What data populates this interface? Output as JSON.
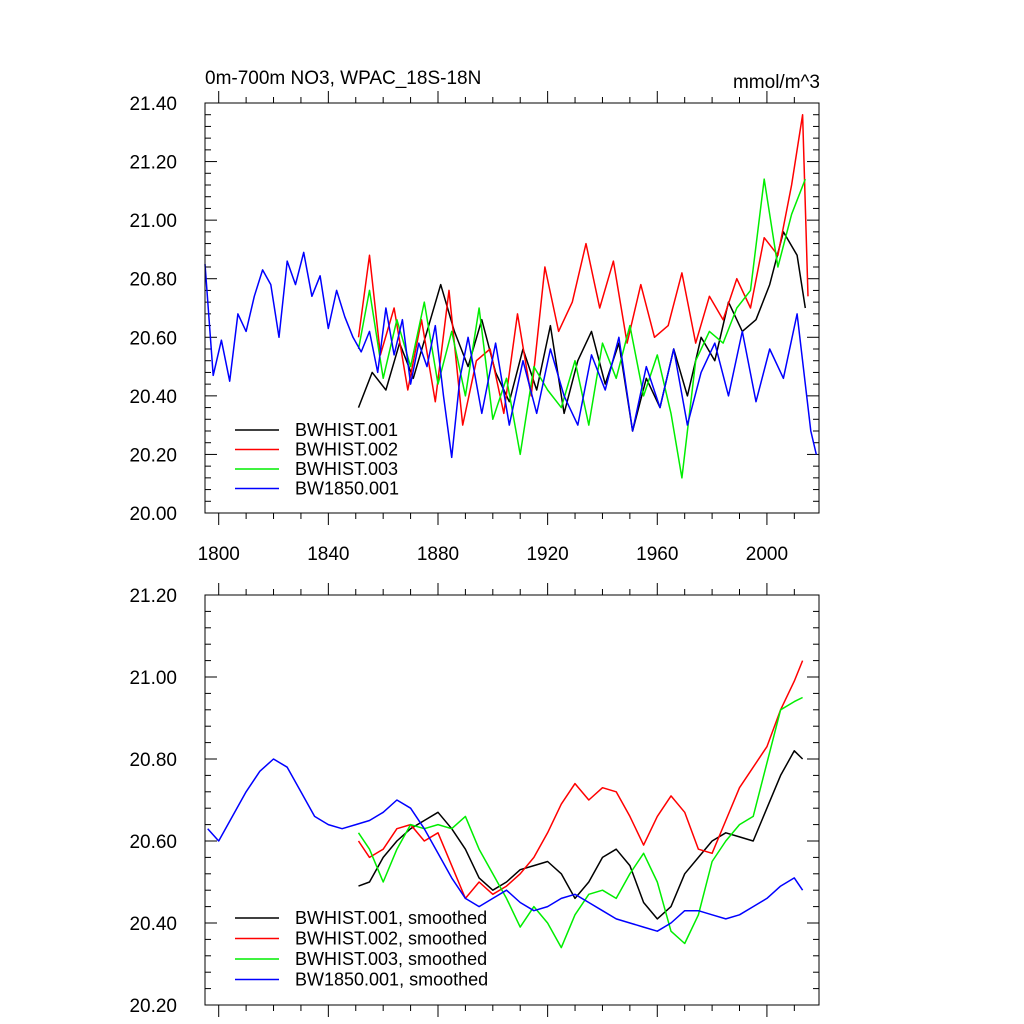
{
  "chart_data": [
    {
      "type": "line",
      "title": "0m-700m NO3, WPAC_18S-18N",
      "units": "mmol/m^3",
      "xlim": [
        1795,
        2019
      ],
      "ylim": [
        20.0,
        21.4
      ],
      "xticks": [
        1800,
        1840,
        1880,
        1920,
        1960,
        2000
      ],
      "xtick_labels": [
        "1800",
        "1840",
        "1880",
        "1920",
        "1960",
        "2000"
      ],
      "yticks": [
        20.0,
        20.2,
        20.4,
        20.6,
        20.8,
        21.0,
        21.2,
        21.4
      ],
      "ytick_labels": [
        "20.00",
        "20.20",
        "20.40",
        "20.60",
        "20.80",
        "21.00",
        "21.20",
        "21.40"
      ],
      "legend_position": "bottom-left",
      "series": [
        {
          "name": "BWHIST.001",
          "color": "#000000",
          "x": [
            1851,
            1856,
            1861,
            1866,
            1871,
            1876,
            1881,
            1886,
            1891,
            1896,
            1901,
            1906,
            1911,
            1916,
            1921,
            1926,
            1931,
            1936,
            1941,
            1946,
            1951,
            1956,
            1961,
            1966,
            1971,
            1976,
            1981,
            1986,
            1991,
            1996,
            2001,
            2006,
            2011,
            2014
          ],
          "y": [
            20.36,
            20.48,
            20.42,
            20.58,
            20.46,
            20.62,
            20.78,
            20.62,
            20.5,
            20.66,
            20.48,
            20.38,
            20.56,
            20.42,
            20.64,
            20.34,
            20.52,
            20.62,
            20.44,
            20.58,
            20.28,
            20.46,
            20.36,
            20.56,
            20.4,
            20.6,
            20.52,
            20.72,
            20.62,
            20.66,
            20.78,
            20.96,
            20.88,
            20.7
          ]
        },
        {
          "name": "BWHIST.002",
          "color": "#ff0000",
          "x": [
            1851,
            1855,
            1859,
            1864,
            1869,
            1874,
            1879,
            1884,
            1889,
            1894,
            1899,
            1904,
            1909,
            1914,
            1919,
            1924,
            1929,
            1934,
            1939,
            1944,
            1949,
            1954,
            1959,
            1964,
            1969,
            1974,
            1979,
            1984,
            1989,
            1994,
            1999,
            2004,
            2009,
            2013,
            2015
          ],
          "y": [
            20.6,
            20.88,
            20.54,
            20.7,
            20.42,
            20.66,
            20.38,
            20.76,
            20.3,
            20.52,
            20.56,
            20.34,
            20.68,
            20.4,
            20.84,
            20.62,
            20.72,
            20.92,
            20.7,
            20.86,
            20.58,
            20.78,
            20.6,
            20.64,
            20.82,
            20.58,
            20.74,
            20.66,
            20.8,
            20.7,
            20.94,
            20.88,
            21.12,
            21.36,
            20.74
          ]
        },
        {
          "name": "BWHIST.003",
          "color": "#00ee00",
          "x": [
            1851,
            1855,
            1860,
            1865,
            1870,
            1875,
            1880,
            1885,
            1890,
            1895,
            1900,
            1905,
            1910,
            1915,
            1920,
            1925,
            1930,
            1935,
            1940,
            1945,
            1950,
            1955,
            1960,
            1965,
            1969,
            1974,
            1979,
            1984,
            1989,
            1994,
            1999,
            2004,
            2009,
            2014
          ],
          "y": [
            20.56,
            20.76,
            20.46,
            20.66,
            20.5,
            20.72,
            20.44,
            20.62,
            20.4,
            20.7,
            20.32,
            20.46,
            20.2,
            20.5,
            20.42,
            20.36,
            20.52,
            20.3,
            20.58,
            20.46,
            20.64,
            20.4,
            20.54,
            20.34,
            20.12,
            20.52,
            20.62,
            20.58,
            20.7,
            20.76,
            21.14,
            20.84,
            21.02,
            21.14
          ]
        },
        {
          "name": "BW1850.001",
          "color": "#0000ff",
          "x": [
            1795,
            1798,
            1801,
            1804,
            1807,
            1810,
            1813,
            1816,
            1819,
            1822,
            1825,
            1828,
            1831,
            1834,
            1837,
            1840,
            1843,
            1846,
            1849,
            1852,
            1855,
            1858,
            1861,
            1864,
            1867,
            1870,
            1873,
            1876,
            1879,
            1882,
            1885,
            1888,
            1891,
            1896,
            1901,
            1906,
            1911,
            1916,
            1921,
            1926,
            1931,
            1936,
            1941,
            1946,
            1951,
            1956,
            1961,
            1966,
            1971,
            1976,
            1981,
            1986,
            1991,
            1996,
            2001,
            2006,
            2011,
            2014,
            2016,
            2018
          ],
          "y": [
            20.85,
            20.47,
            20.59,
            20.45,
            20.68,
            20.62,
            20.74,
            20.83,
            20.78,
            20.6,
            20.86,
            20.78,
            20.89,
            20.74,
            20.81,
            20.63,
            20.76,
            20.67,
            20.6,
            20.55,
            20.62,
            20.48,
            20.7,
            20.54,
            20.66,
            20.44,
            20.58,
            20.5,
            20.64,
            20.4,
            20.19,
            20.46,
            20.6,
            20.34,
            20.58,
            20.3,
            20.52,
            20.34,
            20.56,
            20.4,
            20.3,
            20.54,
            20.42,
            20.6,
            20.28,
            20.5,
            20.36,
            20.56,
            20.3,
            20.48,
            20.58,
            20.4,
            20.62,
            20.38,
            20.56,
            20.46,
            20.68,
            20.44,
            20.28,
            20.2
          ]
        }
      ]
    },
    {
      "type": "line",
      "title": "",
      "xlim": [
        1795,
        2019
      ],
      "ylim": [
        20.2,
        21.2
      ],
      "xticks": [
        1800,
        1840,
        1880,
        1920,
        1960,
        2000
      ],
      "xtick_labels": [],
      "yticks": [
        20.2,
        20.4,
        20.6,
        20.8,
        21.0,
        21.2
      ],
      "ytick_labels": [
        "20.20",
        "20.40",
        "20.60",
        "20.80",
        "21.00",
        "21.20"
      ],
      "legend_position": "bottom-left",
      "series": [
        {
          "name": "BWHIST.001, smoothed",
          "color": "#000000",
          "x": [
            1851,
            1855,
            1860,
            1865,
            1870,
            1875,
            1880,
            1885,
            1890,
            1895,
            1900,
            1905,
            1910,
            1915,
            1920,
            1925,
            1930,
            1935,
            1940,
            1945,
            1950,
            1955,
            1960,
            1965,
            1970,
            1975,
            1980,
            1985,
            1990,
            1995,
            2000,
            2005,
            2010,
            2013
          ],
          "y": [
            20.49,
            20.5,
            20.56,
            20.6,
            20.63,
            20.65,
            20.67,
            20.63,
            20.58,
            20.51,
            20.48,
            20.5,
            20.53,
            20.54,
            20.55,
            20.52,
            20.46,
            20.5,
            20.56,
            20.58,
            20.54,
            20.45,
            20.41,
            20.44,
            20.52,
            20.56,
            20.6,
            20.62,
            20.61,
            20.6,
            20.68,
            20.76,
            20.82,
            20.8
          ]
        },
        {
          "name": "BWHIST.002, smoothed",
          "color": "#ff0000",
          "x": [
            1851,
            1855,
            1860,
            1865,
            1870,
            1875,
            1880,
            1885,
            1890,
            1895,
            1900,
            1905,
            1910,
            1915,
            1920,
            1925,
            1930,
            1935,
            1940,
            1945,
            1950,
            1955,
            1960,
            1965,
            1970,
            1975,
            1980,
            1985,
            1990,
            1995,
            2000,
            2005,
            2010,
            2013
          ],
          "y": [
            20.6,
            20.56,
            20.58,
            20.63,
            20.64,
            20.6,
            20.62,
            20.54,
            20.46,
            20.5,
            20.47,
            20.49,
            20.52,
            20.56,
            20.62,
            20.69,
            20.74,
            20.7,
            20.73,
            20.72,
            20.66,
            20.59,
            20.66,
            20.71,
            20.67,
            20.58,
            20.57,
            20.65,
            20.73,
            20.78,
            20.83,
            20.92,
            20.99,
            21.04
          ]
        },
        {
          "name": "BWHIST.003, smoothed",
          "color": "#00ee00",
          "x": [
            1851,
            1855,
            1860,
            1865,
            1870,
            1875,
            1880,
            1885,
            1890,
            1895,
            1900,
            1905,
            1910,
            1915,
            1920,
            1925,
            1930,
            1935,
            1940,
            1945,
            1950,
            1955,
            1960,
            1965,
            1970,
            1975,
            1980,
            1985,
            1990,
            1995,
            2000,
            2005,
            2010,
            2013
          ],
          "y": [
            20.62,
            20.58,
            20.5,
            20.58,
            20.64,
            20.63,
            20.64,
            20.63,
            20.66,
            20.58,
            20.52,
            20.46,
            20.39,
            20.44,
            20.4,
            20.34,
            20.42,
            20.47,
            20.48,
            20.46,
            20.52,
            20.57,
            20.5,
            20.38,
            20.35,
            20.42,
            20.55,
            20.6,
            20.64,
            20.66,
            20.79,
            20.92,
            20.94,
            20.95
          ]
        },
        {
          "name": "BW1850.001, smoothed",
          "color": "#0000ff",
          "x": [
            1796,
            1800,
            1805,
            1810,
            1815,
            1820,
            1825,
            1830,
            1835,
            1840,
            1845,
            1850,
            1855,
            1860,
            1865,
            1870,
            1875,
            1880,
            1885,
            1890,
            1895,
            1900,
            1905,
            1910,
            1915,
            1920,
            1925,
            1930,
            1935,
            1940,
            1945,
            1950,
            1955,
            1960,
            1965,
            1970,
            1975,
            1980,
            1985,
            1990,
            1995,
            2000,
            2005,
            2010,
            2013
          ],
          "y": [
            20.63,
            20.6,
            20.66,
            20.72,
            20.77,
            20.8,
            20.78,
            20.72,
            20.66,
            20.64,
            20.63,
            20.64,
            20.65,
            20.67,
            20.7,
            20.68,
            20.63,
            20.57,
            20.51,
            20.46,
            20.44,
            20.46,
            20.48,
            20.45,
            20.43,
            20.44,
            20.46,
            20.47,
            20.45,
            20.43,
            20.41,
            20.4,
            20.39,
            20.38,
            20.4,
            20.43,
            20.43,
            20.42,
            20.41,
            20.42,
            20.44,
            20.46,
            20.49,
            20.51,
            20.48
          ]
        }
      ]
    }
  ]
}
